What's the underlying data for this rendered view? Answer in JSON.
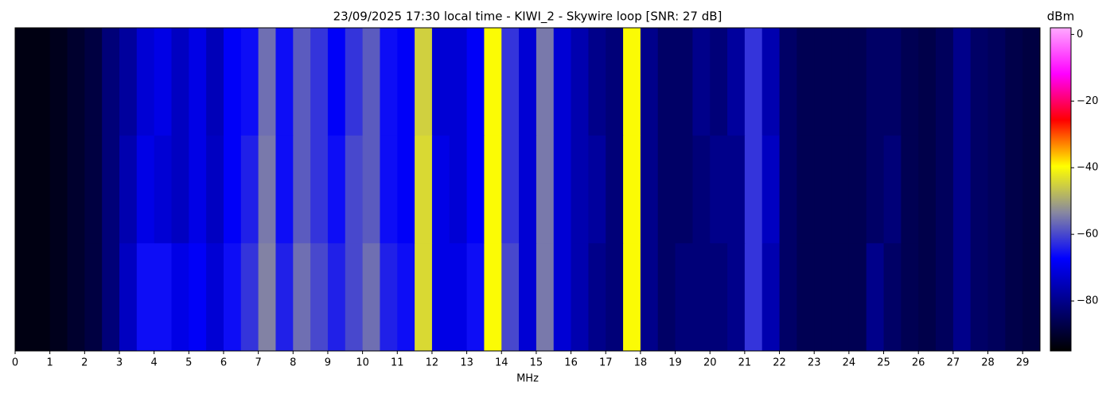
{
  "chart_data": {
    "type": "heatmap",
    "title": "23/09/2025 17:30 local time - KIWI_2 - Skywire loop [SNR: 27 dB]",
    "x_label": "MHz",
    "colorbar_label": "dBm",
    "bins": [
      0,
      0.5,
      1,
      1.5,
      2,
      2.5,
      3,
      3.5,
      4,
      4.5,
      5,
      5.5,
      6,
      6.5,
      7,
      7.5,
      8,
      8.5,
      9,
      9.5,
      10,
      10.5,
      11,
      11.5,
      12,
      12.5,
      13,
      13.5,
      14,
      14.5,
      15,
      15.5,
      16,
      16.5,
      17,
      17.5,
      18,
      18.5,
      19,
      19.5,
      20,
      20.5,
      21,
      21.5,
      22,
      22.5,
      23,
      23.5,
      24,
      24.5,
      25,
      25.5,
      26,
      26.5,
      27,
      27.5,
      28,
      28.5,
      29,
      29.5
    ],
    "z": [
      [
        -93,
        -93,
        -92,
        -90,
        -88,
        -82,
        -78,
        -72,
        -70,
        -74,
        -70,
        -75,
        -68,
        -66,
        -56,
        -66,
        -58,
        -62,
        -68,
        -62,
        -58,
        -66,
        -68,
        -45,
        -72,
        -72,
        -68,
        -40,
        -62,
        -72,
        -55,
        -72,
        -76,
        -80,
        -82,
        -40,
        -80,
        -84,
        -84,
        -80,
        -82,
        -78,
        -62,
        -76,
        -84,
        -86,
        -86,
        -86,
        -86,
        -84,
        -84,
        -86,
        -87,
        -85,
        -80,
        -84,
        -85,
        -87,
        -88
      ],
      [
        -93,
        -93,
        -92,
        -90,
        -88,
        -82,
        -76,
        -70,
        -72,
        -74,
        -70,
        -74,
        -68,
        -64,
        -55,
        -66,
        -58,
        -62,
        -66,
        -60,
        -58,
        -66,
        -68,
        -44,
        -70,
        -72,
        -68,
        -40,
        -62,
        -72,
        -55,
        -72,
        -76,
        -78,
        -82,
        -40,
        -80,
        -84,
        -84,
        -82,
        -80,
        -80,
        -62,
        -74,
        -84,
        -86,
        -86,
        -86,
        -86,
        -84,
        -82,
        -86,
        -87,
        -85,
        -80,
        -84,
        -85,
        -87,
        -88
      ],
      [
        -93,
        -93,
        -92,
        -90,
        -88,
        -82,
        -74,
        -66,
        -66,
        -70,
        -68,
        -72,
        -66,
        -62,
        -54,
        -64,
        -56,
        -60,
        -64,
        -60,
        -56,
        -64,
        -66,
        -44,
        -70,
        -70,
        -66,
        -40,
        -60,
        -72,
        -55,
        -72,
        -76,
        -80,
        -82,
        -40,
        -80,
        -84,
        -82,
        -82,
        -82,
        -80,
        -62,
        -76,
        -84,
        -86,
        -86,
        -86,
        -86,
        -80,
        -84,
        -86,
        -87,
        -85,
        -80,
        -84,
        -85,
        -87,
        -88
      ]
    ],
    "xlim": [
      0,
      29.5
    ],
    "xticks": [
      0,
      1,
      2,
      3,
      4,
      5,
      6,
      7,
      8,
      9,
      10,
      11,
      12,
      13,
      14,
      15,
      16,
      17,
      18,
      19,
      20,
      21,
      22,
      23,
      24,
      25,
      26,
      27,
      28,
      29
    ],
    "zlim": [
      -95,
      2
    ],
    "zticks": [
      0,
      {
        "value": -20,
        "label": "−20"
      },
      {
        "value": -40,
        "label": "−40"
      },
      {
        "value": -60,
        "label": "−60"
      },
      {
        "value": -80,
        "label": "−80"
      }
    ],
    "colorscale": [
      "#000000",
      "#000080",
      "#0000ff",
      "#8888a0",
      "#ffff00",
      "#ff0000",
      "#ff00ff",
      "#ffaaff"
    ]
  }
}
